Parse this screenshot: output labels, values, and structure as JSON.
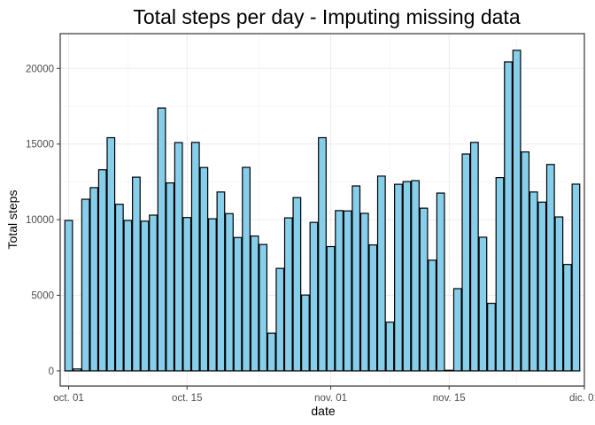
{
  "chart_data": {
    "type": "bar",
    "title": "Total steps per day - Imputing missing data",
    "xlabel": "date",
    "ylabel": "Total steps",
    "x_start": "2012-10-01",
    "x_end": "2012-11-30",
    "xlim": [
      "2012-09-30",
      "2012-12-01"
    ],
    "ylim": [
      -1000,
      22300
    ],
    "x_ticks": [
      {
        "date": "2012-10-01",
        "label": "oct. 01"
      },
      {
        "date": "2012-10-15",
        "label": "oct. 15"
      },
      {
        "date": "2012-11-01",
        "label": "nov. 01"
      },
      {
        "date": "2012-11-15",
        "label": "nov. 15"
      },
      {
        "date": "2012-12-01",
        "label": "dic. 01"
      }
    ],
    "y_ticks": [
      {
        "value": 0,
        "label": "0"
      },
      {
        "value": 5000,
        "label": "5000"
      },
      {
        "value": 10000,
        "label": "10000"
      },
      {
        "value": 15000,
        "label": "15000"
      },
      {
        "value": 20000,
        "label": "20000"
      }
    ],
    "grid": true,
    "bar_fill": "#87ceeb",
    "bar_outline": "#000000",
    "values": [
      9950,
      130,
      11350,
      12120,
      13300,
      15420,
      11020,
      9950,
      12810,
      9900,
      10300,
      17380,
      12430,
      15100,
      10140,
      15110,
      13450,
      10060,
      11830,
      10400,
      8820,
      13460,
      8920,
      8360,
      2500,
      6780,
      10120,
      11460,
      5020,
      9820,
      15420,
      8220,
      10600,
      10580,
      12230,
      10420,
      8330,
      12880,
      3220,
      12340,
      12520,
      12580,
      10760,
      7320,
      11760,
      40,
      5440,
      14340,
      15110,
      8840,
      4470,
      12780,
      20430,
      21200,
      14480,
      11830,
      11160,
      13650,
      10180,
      7040,
      12350
    ]
  }
}
